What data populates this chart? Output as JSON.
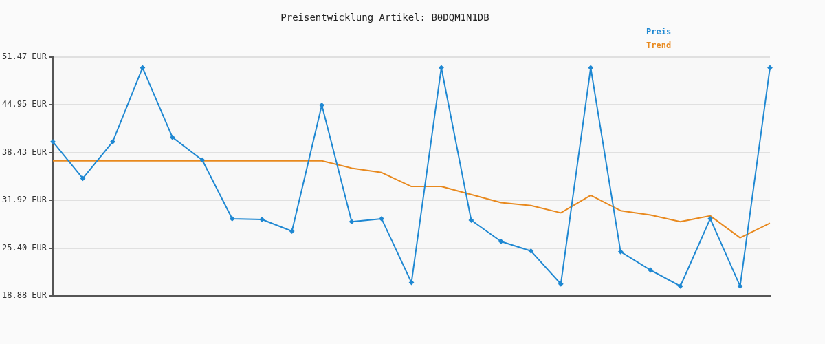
{
  "chart_data": {
    "type": "line",
    "title": "Preisentwicklung Artikel: B0DQM1N1DB",
    "categories": [
      null,
      null,
      null,
      null,
      null,
      null,
      null,
      null,
      null,
      null,
      null,
      null,
      null,
      null,
      null,
      null,
      null,
      null,
      null,
      null,
      null,
      null,
      null,
      null,
      null
    ],
    "series": [
      {
        "name": "Preis",
        "color": "#1f88d2",
        "marker": "diamond",
        "values": [
          39.9,
          34.9,
          39.9,
          50.0,
          40.5,
          37.4,
          29.4,
          29.3,
          27.7,
          44.9,
          29.0,
          29.4,
          20.7,
          50.0,
          29.2,
          26.3,
          25.0,
          20.5,
          50.0,
          24.9,
          22.4,
          20.2,
          29.4,
          20.2,
          50.0
        ]
      },
      {
        "name": "Trend",
        "color": "#e8891e",
        "marker": "none",
        "values": [
          37.3,
          37.3,
          37.3,
          37.3,
          37.3,
          37.3,
          37.3,
          37.3,
          37.3,
          37.3,
          36.3,
          35.7,
          33.8,
          33.8,
          32.7,
          31.6,
          31.2,
          30.2,
          32.6,
          30.5,
          29.9,
          29.0,
          29.8,
          26.8,
          28.8
        ]
      }
    ],
    "ylim": [
      18.88,
      51.47
    ],
    "yticks": [
      {
        "value": 18.88,
        "label": "18.88 EUR"
      },
      {
        "value": 25.4,
        "label": "25.40 EUR"
      },
      {
        "value": 31.92,
        "label": "31.92 EUR"
      },
      {
        "value": 38.43,
        "label": "38.43 EUR"
      },
      {
        "value": 44.95,
        "label": "44.95 EUR"
      },
      {
        "value": 51.47,
        "label": "51.47 EUR"
      }
    ],
    "grid": "y",
    "legend": "top right",
    "tick_labels": "y"
  }
}
